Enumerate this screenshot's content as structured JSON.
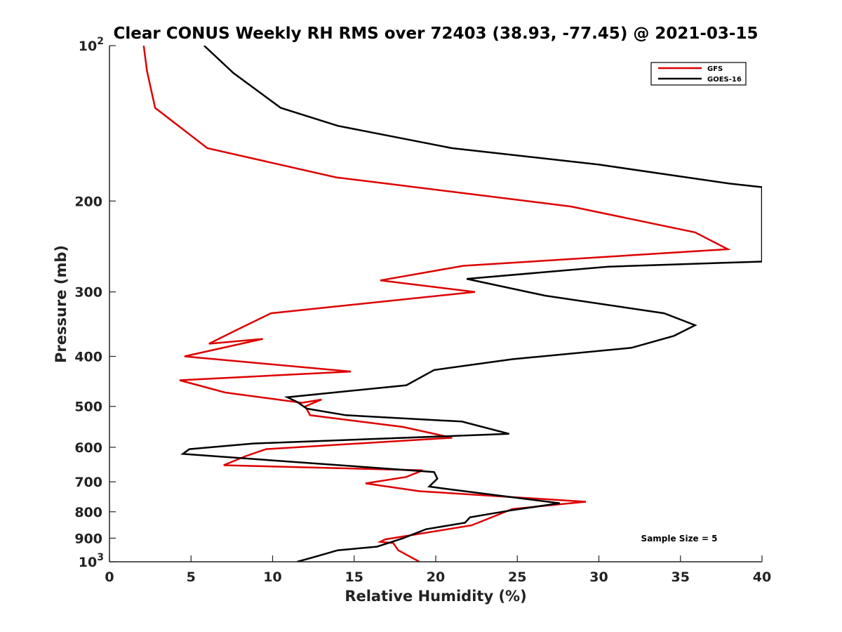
{
  "chart_data": {
    "type": "line",
    "title": "Clear CONUS Weekly RH RMS over 72403 (38.93, -77.45) @ 2021-03-15",
    "xlabel": "Relative Humidity (%)",
    "ylabel": "Pressure (mb)",
    "xlim": [
      0,
      40
    ],
    "ylim": [
      100,
      1000
    ],
    "yscale": "log",
    "y_reversed": true,
    "x_ticks": [
      0,
      5,
      10,
      15,
      20,
      25,
      30,
      35,
      40
    ],
    "x_tick_labels": [
      "0",
      "5",
      "10",
      "15",
      "20",
      "25",
      "30",
      "35",
      "40"
    ],
    "y_ticks": [
      200,
      300,
      400,
      500,
      600,
      700,
      800,
      900
    ],
    "y_tick_labels": [
      "200",
      "300",
      "400",
      "500",
      "600",
      "700",
      "800",
      "900"
    ],
    "y_ends": {
      "top": {
        "value": 100,
        "base": "10",
        "exp": "2"
      },
      "bottom": {
        "value": 1000,
        "base": "10",
        "exp": "3"
      }
    },
    "grid": false,
    "legend_position": "top-right",
    "series": [
      {
        "name": "GFS",
        "color": "#dd0000",
        "x": [
          2.1,
          2.3,
          2.8,
          6.0,
          13.9,
          28.3,
          35.9,
          37.9,
          21.7,
          16.6,
          22.4,
          9.9,
          7.6,
          6.1,
          9.4,
          4.6,
          14.8,
          4.3,
          7.1,
          11.8,
          13.0,
          12.0,
          12.3,
          18.0,
          21.0,
          9.6,
          8.3,
          7.0,
          19.2,
          18.2,
          15.7,
          19.0,
          29.2,
          24.7,
          22.2,
          16.9,
          16.6,
          17.4,
          17.7,
          19.0
        ],
        "y": [
          100,
          112,
          132,
          158,
          180,
          205,
          230,
          248,
          267,
          285,
          300,
          330,
          358,
          378,
          370,
          400,
          428,
          445,
          470,
          492,
          485,
          500,
          520,
          548,
          575,
          605,
          625,
          650,
          665,
          685,
          705,
          730,
          765,
          790,
          850,
          905,
          915,
          920,
          950,
          1000
        ],
        "values": [
          2.1,
          2.3,
          2.8,
          6.0,
          13.9,
          28.3,
          35.9,
          37.9,
          21.7,
          16.6,
          22.4,
          9.9,
          7.6,
          6.1,
          9.4,
          4.6,
          14.8,
          4.3,
          7.1,
          11.8,
          13.0,
          12.0,
          12.3,
          18.0,
          21.0,
          9.6,
          8.3,
          7.0,
          19.2,
          18.2,
          15.7,
          19.0,
          29.2,
          24.7,
          22.2,
          16.9,
          16.6,
          17.4,
          17.7,
          19.0
        ]
      },
      {
        "name": "GOES-16",
        "color": "#000000",
        "x": [
          5.8,
          7.6,
          10.5,
          14.0,
          21.0,
          30.0,
          38.0,
          40.0,
          40.0,
          30.6,
          21.9,
          26.7,
          34.0,
          35.9,
          34.6,
          32.0,
          24.7,
          19.9,
          18.2,
          10.9,
          11.5,
          12.1,
          14.5,
          21.6,
          24.5,
          8.8,
          4.9,
          4.5,
          19.9,
          20.1,
          19.6,
          21.0,
          27.6,
          24.6,
          22.1,
          21.8,
          19.4,
          18.0,
          16.4,
          14.0,
          12.5,
          11.5
        ],
        "y": [
          100,
          113,
          132,
          143,
          158,
          170,
          185,
          188,
          262,
          268,
          283,
          305,
          330,
          348,
          365,
          385,
          405,
          425,
          455,
          480,
          490,
          505,
          520,
          535,
          565,
          590,
          605,
          618,
          670,
          690,
          715,
          725,
          770,
          795,
          820,
          840,
          865,
          900,
          935,
          950,
          980,
          1000
        ],
        "values": [
          5.8,
          7.6,
          10.5,
          14.0,
          21.0,
          30.0,
          38.0,
          40.0,
          40.0,
          30.6,
          21.9,
          26.7,
          34.0,
          35.9,
          34.6,
          32.0,
          24.7,
          19.9,
          18.2,
          10.9,
          11.5,
          12.1,
          14.5,
          21.6,
          24.5,
          8.8,
          4.9,
          4.5,
          19.9,
          20.1,
          19.6,
          21.0,
          27.6,
          24.6,
          22.1,
          21.8,
          19.4,
          18.0,
          16.4,
          14.0,
          12.5,
          11.5
        ]
      }
    ],
    "annotation": "Sample Size = 5"
  }
}
